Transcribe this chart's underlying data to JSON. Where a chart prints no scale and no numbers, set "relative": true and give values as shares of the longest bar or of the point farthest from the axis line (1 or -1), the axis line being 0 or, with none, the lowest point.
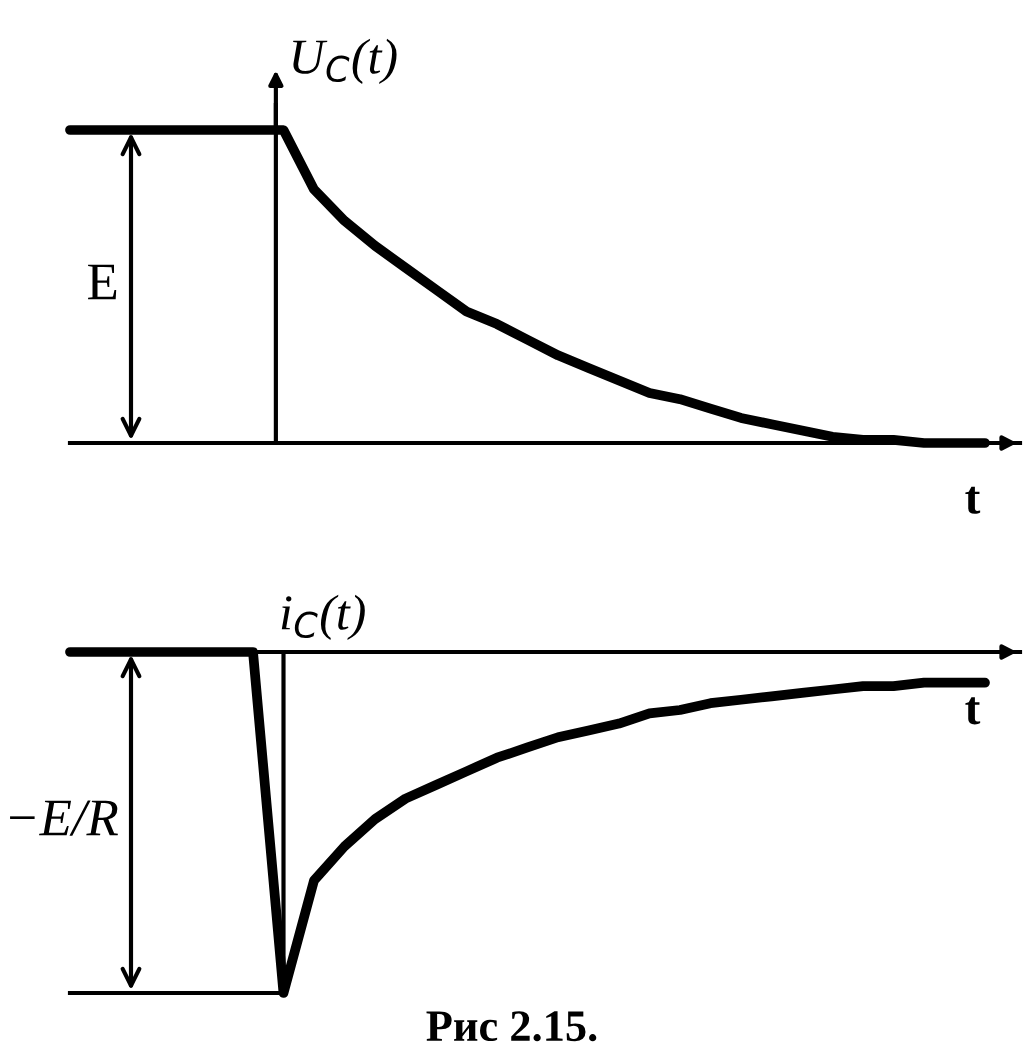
{
  "chart_data": [
    {
      "type": "line",
      "relative": true,
      "xlabel": "t",
      "ylabel": "U$_{C}$(t)",
      "annotations": [
        "E"
      ],
      "categories": [
        null,
        null,
        null,
        null,
        null,
        null,
        null,
        null,
        null,
        null,
        null,
        null,
        null,
        null,
        null,
        null,
        null,
        null,
        null,
        null,
        null,
        null,
        null,
        null,
        null,
        null,
        null,
        null,
        null,
        null,
        null
      ],
      "series": [
        {
          "color": "#000000",
          "values": [
            1,
            1,
            1,
            1,
            1,
            1,
            1,
            1,
            0.81,
            0.71,
            0.63,
            0.56,
            0.49,
            0.42,
            0.38,
            0.33,
            0.28,
            0.24,
            0.2,
            0.16,
            0.14,
            0.11,
            0.08,
            0.06,
            0.04,
            0.02,
            0.01,
            0.01,
            0,
            0,
            0
          ]
        }
      ]
    },
    {
      "type": "line",
      "relative": true,
      "xlabel": "t",
      "ylabel": "i$_{C}$(t)",
      "annotations": [
        "−E/R",
        "Рис 2.15."
      ],
      "categories": [
        null,
        null,
        null,
        null,
        null,
        null,
        null,
        null,
        null,
        null,
        null,
        null,
        null,
        null,
        null,
        null,
        null,
        null,
        null,
        null,
        null,
        null,
        null,
        null,
        null,
        null,
        null,
        null,
        null,
        null,
        null
      ],
      "series": [
        {
          "color": "#000000",
          "values": [
            0,
            0,
            0,
            0,
            0,
            0,
            0,
            -1,
            -0.67,
            -0.57,
            -0.49,
            -0.43,
            -0.39,
            -0.35,
            -0.31,
            -0.28,
            -0.25,
            -0.23,
            -0.21,
            -0.18,
            -0.17,
            -0.15,
            -0.14,
            -0.13,
            -0.12,
            -0.11,
            -0.1,
            -0.1,
            -0.09,
            -0.09,
            -0.09
          ]
        }
      ]
    }
  ]
}
